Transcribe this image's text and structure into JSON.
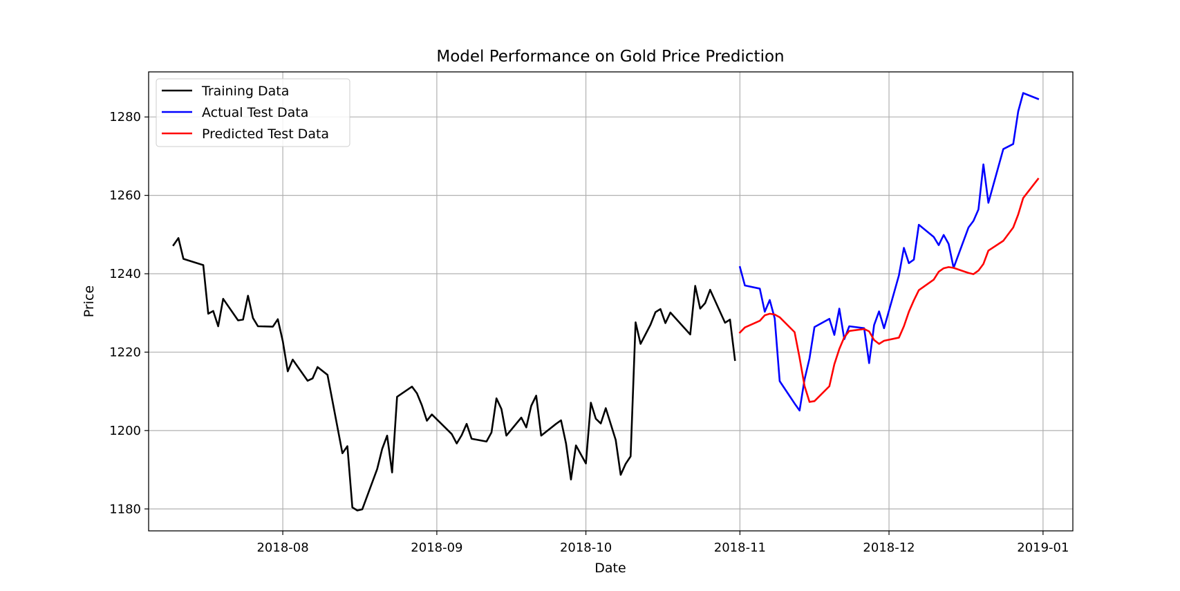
{
  "chart_data": {
    "type": "line",
    "title": "Model Performance on Gold Price Prediction",
    "xlabel": "Date",
    "ylabel": "Price",
    "xlim": [
      "2018-07-05",
      "2019-01-07"
    ],
    "ylim": [
      1174.4,
      1291.5
    ],
    "x_ticks": [
      "2018-08-01",
      "2018-09-01",
      "2018-10-01",
      "2018-11-01",
      "2018-12-01",
      "2019-01-01"
    ],
    "x_tick_labels": [
      "2018-08",
      "2018-09",
      "2018-10",
      "2018-11",
      "2018-12",
      "2019-01"
    ],
    "y_ticks": [
      1180,
      1200,
      1220,
      1240,
      1260,
      1280
    ],
    "y_tick_labels": [
      "1180",
      "1200",
      "1220",
      "1240",
      "1260",
      "1280"
    ],
    "grid": true,
    "legend": {
      "position": "upper-left",
      "entries": [
        "Training Data",
        "Actual Test Data",
        "Predicted Test Data"
      ]
    },
    "series": [
      {
        "name": "Training Data",
        "color": "#000000",
        "points": [
          [
            "2018-07-10",
            1247.3
          ],
          [
            "2018-07-11",
            1249.1
          ],
          [
            "2018-07-12",
            1243.8
          ],
          [
            "2018-07-16",
            1242.2
          ],
          [
            "2018-07-17",
            1229.8
          ],
          [
            "2018-07-18",
            1230.5
          ],
          [
            "2018-07-19",
            1226.6
          ],
          [
            "2018-07-20",
            1233.6
          ],
          [
            "2018-07-23",
            1228.1
          ],
          [
            "2018-07-24",
            1228.3
          ],
          [
            "2018-07-25",
            1234.4
          ],
          [
            "2018-07-26",
            1228.7
          ],
          [
            "2018-07-27",
            1226.6
          ],
          [
            "2018-07-30",
            1226.5
          ],
          [
            "2018-07-31",
            1228.4
          ],
          [
            "2018-08-01",
            1222.8
          ],
          [
            "2018-08-02",
            1215.1
          ],
          [
            "2018-08-03",
            1218.1
          ],
          [
            "2018-08-06",
            1212.7
          ],
          [
            "2018-08-07",
            1213.3
          ],
          [
            "2018-08-08",
            1216.2
          ],
          [
            "2018-08-10",
            1214.2
          ],
          [
            "2018-08-13",
            1194.2
          ],
          [
            "2018-08-14",
            1196.0
          ],
          [
            "2018-08-15",
            1180.4
          ],
          [
            "2018-08-16",
            1179.6
          ],
          [
            "2018-08-17",
            1179.9
          ],
          [
            "2018-08-20",
            1190.2
          ],
          [
            "2018-08-21",
            1195.3
          ],
          [
            "2018-08-22",
            1198.7
          ],
          [
            "2018-08-23",
            1189.3
          ],
          [
            "2018-08-24",
            1208.6
          ],
          [
            "2018-08-27",
            1211.2
          ],
          [
            "2018-08-28",
            1209.5
          ],
          [
            "2018-08-29",
            1206.4
          ],
          [
            "2018-08-30",
            1202.5
          ],
          [
            "2018-08-31",
            1204.1
          ],
          [
            "2018-09-04",
            1199.1
          ],
          [
            "2018-09-05",
            1196.7
          ],
          [
            "2018-09-06",
            1198.8
          ],
          [
            "2018-09-07",
            1201.7
          ],
          [
            "2018-09-08",
            1197.9
          ],
          [
            "2018-09-11",
            1197.2
          ],
          [
            "2018-09-12",
            1199.5
          ],
          [
            "2018-09-13",
            1208.2
          ],
          [
            "2018-09-14",
            1205.5
          ],
          [
            "2018-09-15",
            1198.7
          ],
          [
            "2018-09-18",
            1203.3
          ],
          [
            "2018-09-19",
            1200.8
          ],
          [
            "2018-09-20",
            1206.3
          ],
          [
            "2018-09-21",
            1208.9
          ],
          [
            "2018-09-22",
            1198.7
          ],
          [
            "2018-09-25",
            1201.7
          ],
          [
            "2018-09-26",
            1202.6
          ],
          [
            "2018-09-27",
            1196.7
          ],
          [
            "2018-09-28",
            1187.5
          ],
          [
            "2018-09-29",
            1196.2
          ],
          [
            "2018-10-01",
            1191.6
          ],
          [
            "2018-10-02",
            1207.1
          ],
          [
            "2018-10-03",
            1203.0
          ],
          [
            "2018-10-04",
            1201.8
          ],
          [
            "2018-10-05",
            1205.7
          ],
          [
            "2018-10-07",
            1197.6
          ],
          [
            "2018-10-08",
            1188.7
          ],
          [
            "2018-10-09",
            1191.5
          ],
          [
            "2018-10-10",
            1193.4
          ],
          [
            "2018-10-11",
            1227.6
          ],
          [
            "2018-10-12",
            1222.1
          ],
          [
            "2018-10-14",
            1227.0
          ],
          [
            "2018-10-15",
            1230.2
          ],
          [
            "2018-10-16",
            1231.0
          ],
          [
            "2018-10-17",
            1227.4
          ],
          [
            "2018-10-18",
            1230.1
          ],
          [
            "2018-10-22",
            1224.5
          ],
          [
            "2018-10-23",
            1236.9
          ],
          [
            "2018-10-24",
            1231.1
          ],
          [
            "2018-10-25",
            1232.5
          ],
          [
            "2018-10-26",
            1235.9
          ],
          [
            "2018-10-29",
            1227.5
          ],
          [
            "2018-10-30",
            1228.3
          ],
          [
            "2018-10-31",
            1218.0
          ]
        ]
      },
      {
        "name": "Actual Test Data",
        "color": "#0000ff",
        "points": [
          [
            "2018-11-01",
            1241.7
          ],
          [
            "2018-11-02",
            1237.0
          ],
          [
            "2018-11-05",
            1236.2
          ],
          [
            "2018-11-06",
            1230.3
          ],
          [
            "2018-11-07",
            1233.3
          ],
          [
            "2018-11-08",
            1228.6
          ],
          [
            "2018-11-09",
            1212.6
          ],
          [
            "2018-11-12",
            1206.9
          ],
          [
            "2018-11-13",
            1205.1
          ],
          [
            "2018-11-14",
            1213.0
          ],
          [
            "2018-11-15",
            1218.4
          ],
          [
            "2018-11-16",
            1226.4
          ],
          [
            "2018-11-19",
            1228.5
          ],
          [
            "2018-11-20",
            1224.4
          ],
          [
            "2018-11-21",
            1231.1
          ],
          [
            "2018-11-22",
            1223.3
          ],
          [
            "2018-11-23",
            1226.6
          ],
          [
            "2018-11-26",
            1226.1
          ],
          [
            "2018-11-27",
            1217.2
          ],
          [
            "2018-11-28",
            1226.9
          ],
          [
            "2018-11-29",
            1230.4
          ],
          [
            "2018-11-30",
            1226.1
          ],
          [
            "2018-12-03",
            1239.6
          ],
          [
            "2018-12-04",
            1246.6
          ],
          [
            "2018-12-05",
            1242.7
          ],
          [
            "2018-12-06",
            1243.6
          ],
          [
            "2018-12-07",
            1252.5
          ],
          [
            "2018-12-10",
            1249.4
          ],
          [
            "2018-12-11",
            1247.3
          ],
          [
            "2018-12-12",
            1249.9
          ],
          [
            "2018-12-13",
            1247.6
          ],
          [
            "2018-12-14",
            1241.5
          ],
          [
            "2018-12-17",
            1251.8
          ],
          [
            "2018-12-18",
            1253.5
          ],
          [
            "2018-12-19",
            1256.4
          ],
          [
            "2018-12-20",
            1267.9
          ],
          [
            "2018-12-21",
            1258.1
          ],
          [
            "2018-12-24",
            1271.8
          ],
          [
            "2018-12-26",
            1273.1
          ],
          [
            "2018-12-27",
            1281.4
          ],
          [
            "2018-12-28",
            1286.1
          ],
          [
            "2018-12-31",
            1284.6
          ]
        ]
      },
      {
        "name": "Predicted Test Data",
        "color": "#ff0000",
        "points": [
          [
            "2018-11-01",
            1225.0
          ],
          [
            "2018-11-02",
            1226.3
          ],
          [
            "2018-11-05",
            1228.0
          ],
          [
            "2018-11-06",
            1229.4
          ],
          [
            "2018-11-07",
            1229.8
          ],
          [
            "2018-11-08",
            1229.6
          ],
          [
            "2018-11-09",
            1228.9
          ],
          [
            "2018-11-12",
            1225.1
          ],
          [
            "2018-11-13",
            1218.6
          ],
          [
            "2018-11-14",
            1211.4
          ],
          [
            "2018-11-15",
            1207.3
          ],
          [
            "2018-11-16",
            1207.5
          ],
          [
            "2018-11-19",
            1211.3
          ],
          [
            "2018-11-20",
            1216.9
          ],
          [
            "2018-11-21",
            1220.8
          ],
          [
            "2018-11-22",
            1223.8
          ],
          [
            "2018-11-23",
            1225.4
          ],
          [
            "2018-11-26",
            1225.9
          ],
          [
            "2018-11-27",
            1225.3
          ],
          [
            "2018-11-28",
            1223.1
          ],
          [
            "2018-11-29",
            1222.1
          ],
          [
            "2018-11-30",
            1222.9
          ],
          [
            "2018-12-03",
            1223.7
          ],
          [
            "2018-12-04",
            1226.6
          ],
          [
            "2018-12-05",
            1230.3
          ],
          [
            "2018-12-06",
            1233.2
          ],
          [
            "2018-12-07",
            1235.8
          ],
          [
            "2018-12-10",
            1238.5
          ],
          [
            "2018-12-11",
            1240.5
          ],
          [
            "2018-12-12",
            1241.4
          ],
          [
            "2018-12-13",
            1241.7
          ],
          [
            "2018-12-14",
            1241.5
          ],
          [
            "2018-12-17",
            1240.2
          ],
          [
            "2018-12-18",
            1239.9
          ],
          [
            "2018-12-19",
            1240.8
          ],
          [
            "2018-12-20",
            1242.5
          ],
          [
            "2018-12-21",
            1245.9
          ],
          [
            "2018-12-24",
            1248.4
          ],
          [
            "2018-12-26",
            1251.8
          ],
          [
            "2018-12-27",
            1255.1
          ],
          [
            "2018-12-28",
            1259.3
          ],
          [
            "2018-12-31",
            1264.2
          ]
        ]
      }
    ]
  }
}
